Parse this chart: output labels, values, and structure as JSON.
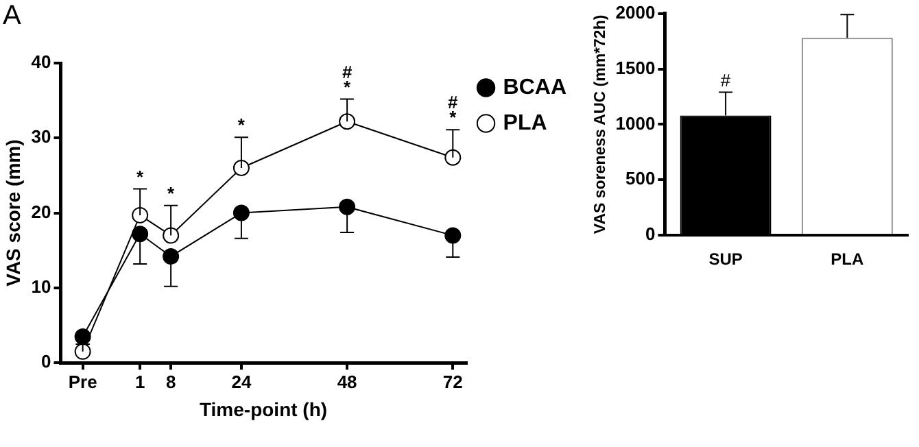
{
  "chart_data": [
    {
      "type": "line",
      "xlabel": "Time-point (h)",
      "ylabel": "VAS score (mm)",
      "x": [
        -12,
        1,
        8,
        24,
        48,
        72
      ],
      "series": [
        {
          "name": "BCAA",
          "color": "#000000",
          "values": [
            3.5,
            17.2,
            14.2,
            20,
            20.8,
            17
          ],
          "errors": [
            [
              2.5,
              3.5
            ],
            [
              13.2,
              17.2
            ],
            [
              10.2,
              14.2
            ],
            [
              16.6,
              20
            ],
            [
              17.4,
              20.8
            ],
            [
              14.1,
              17
            ]
          ]
        },
        {
          "name": "PLA",
          "color": "#ffffff",
          "values": [
            1.5,
            19.7,
            17,
            26,
            32.2,
            27.4
          ],
          "errors": [
            [
              1.5,
              2.5
            ],
            [
              19.7,
              23.2
            ],
            [
              17,
              21
            ],
            [
              26,
              30.1
            ],
            [
              32.2,
              35.2
            ],
            [
              27.4,
              31.1
            ]
          ]
        }
      ],
      "xlim": [
        -17,
        75
      ],
      "xticks": [
        {
          "value": -12,
          "label": "Pre"
        },
        1,
        8,
        24,
        48,
        72
      ],
      "ylim": [
        0,
        40
      ],
      "yticks": [
        0,
        10,
        20,
        30,
        40
      ],
      "grid": false,
      "legend": "right",
      "marker": "circle",
      "line_style": "solid",
      "annotations": [
        "A",
        {
          "text": "*",
          "x": 1,
          "y": 19.7
        },
        {
          "text": "*",
          "x": 8,
          "y": 17
        },
        {
          "text": "*",
          "x": 24,
          "y": 26
        },
        {
          "text": "*",
          "x": 48,
          "y": 32.2
        },
        {
          "text": "#",
          "x": 48,
          "y": 32.2
        },
        {
          "text": "*",
          "x": 72,
          "y": 27.4
        },
        {
          "text": "#",
          "x": 72,
          "y": 27.4
        }
      ]
    },
    {
      "type": "bar",
      "ylabel": "VAS soreness AUC (mm*72h)",
      "categories": [
        "SUP",
        "PLA"
      ],
      "values": [
        1080,
        1780
      ],
      "colors": [
        "#000000",
        "#ffffff"
      ],
      "errors": [
        [
          1080,
          1290
        ],
        [
          1780,
          1990
        ]
      ],
      "ylim": [
        0,
        2000
      ],
      "yticks": [
        0,
        500,
        1000,
        1500,
        2000
      ],
      "grid": false,
      "legend": false,
      "annotations": [
        {
          "text": "#",
          "x": "SUP",
          "y": 1080
        }
      ]
    }
  ]
}
